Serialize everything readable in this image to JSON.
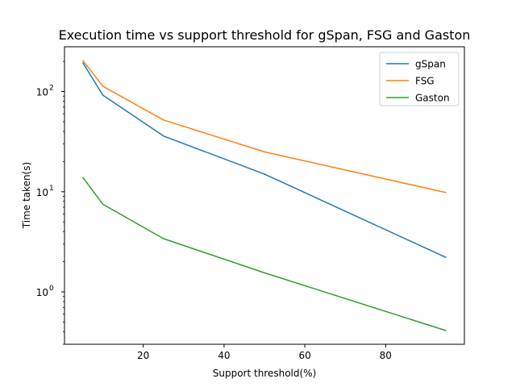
{
  "chart_data": {
    "type": "line",
    "title": "Execution time vs support threshold for gSpan, FSG and Gaston",
    "xlabel": "Support threshold(%)",
    "ylabel": "Time taken(s)",
    "x": [
      5,
      10,
      25,
      50,
      95
    ],
    "series": [
      {
        "name": "gSpan",
        "color": "#1f77b4",
        "values": [
          195,
          92,
          36,
          15,
          2.2
        ]
      },
      {
        "name": "FSG",
        "color": "#ff7f0e",
        "values": [
          205,
          113,
          52,
          25,
          9.8
        ]
      },
      {
        "name": "Gaston",
        "color": "#2ca02c",
        "values": [
          14,
          7.5,
          3.4,
          1.55,
          0.41
        ]
      }
    ],
    "xlim": [
      0.5,
      99.5
    ],
    "ylim": [
      0.3,
      280
    ],
    "yscale": "log",
    "x_ticks": [
      20,
      40,
      60,
      80
    ],
    "x_tick_labels": [
      "20",
      "40",
      "60",
      "80"
    ],
    "y_ticks": [
      1,
      10,
      100
    ],
    "y_tick_labels": [
      "10",
      "10",
      "10"
    ],
    "y_tick_exponents": [
      "0",
      "1",
      "2"
    ],
    "grid": false,
    "legend_position": "top-right"
  }
}
